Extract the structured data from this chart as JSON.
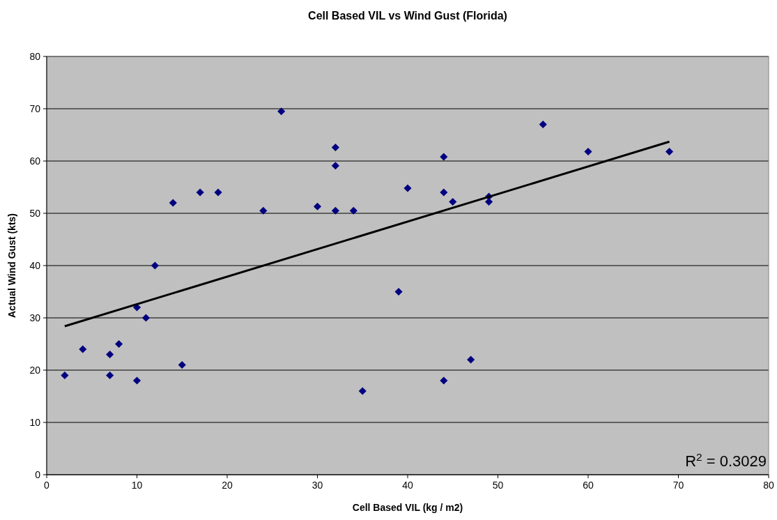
{
  "chart_data": {
    "type": "scatter",
    "title": "Cell Based VIL vs Wind Gust (Florida)",
    "xlabel": "Cell Based VIL (kg / m2)",
    "ylabel": "Actual Wind Gust (kts)",
    "xlim": [
      0,
      80
    ],
    "xticks": [
      0,
      10,
      20,
      30,
      40,
      50,
      60,
      70,
      80
    ],
    "ylim": [
      0,
      80
    ],
    "yticks": [
      0,
      10,
      20,
      30,
      40,
      50,
      60,
      70,
      80
    ],
    "grid": "y",
    "series": [
      {
        "marker": "diamond",
        "color": "#000080",
        "x": [
          2,
          4,
          7,
          7,
          8,
          10,
          10,
          11,
          12,
          14,
          15,
          17,
          19,
          24,
          26,
          30,
          32,
          32,
          32,
          34,
          35,
          39,
          40,
          44,
          44,
          44,
          45,
          47,
          49,
          49,
          55,
          60,
          69
        ],
        "values": [
          19,
          24,
          23,
          19,
          25,
          32,
          18,
          30,
          40,
          52,
          21,
          54,
          54,
          50.5,
          69.5,
          51.3,
          62.6,
          59.1,
          50.5,
          50.5,
          16,
          35,
          54.8,
          60.8,
          54,
          18,
          52.2,
          22,
          53.2,
          52.2,
          67,
          61.8,
          61.8
        ]
      },
      {
        "type": "line",
        "color": "#000000",
        "x": [
          2,
          69
        ],
        "values": [
          28.4,
          63.7
        ]
      }
    ],
    "annotations": [
      "R$^{2}$ = 0.3029"
    ]
  }
}
